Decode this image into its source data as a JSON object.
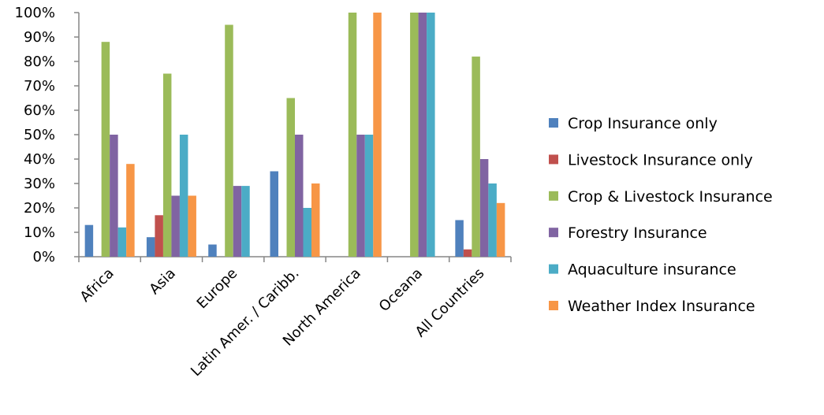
{
  "chart_data": {
    "type": "bar",
    "title": "",
    "xlabel": "",
    "ylabel": "",
    "ylim": [
      0,
      100
    ],
    "yticks": [
      "0%",
      "10%",
      "20%",
      "30%",
      "40%",
      "50%",
      "60%",
      "70%",
      "80%",
      "90%",
      "100%"
    ],
    "grid": false,
    "legend_position": "right",
    "categories": [
      "Africa",
      "Asia",
      "Europe",
      "Latin Amer. / Caribb.",
      "North America",
      "Oceana",
      "All Countries"
    ],
    "series": [
      {
        "name": "Crop Insurance only",
        "color": "#4F81BD",
        "values": [
          13,
          8,
          5,
          35,
          0,
          0,
          15
        ]
      },
      {
        "name": "Livestock Insurance only",
        "color": "#C0504D",
        "values": [
          0,
          17,
          0,
          0,
          0,
          0,
          3
        ]
      },
      {
        "name": "Crop & Livestock Insurance",
        "color": "#9BBB59",
        "values": [
          88,
          75,
          95,
          65,
          100,
          100,
          82
        ]
      },
      {
        "name": "Forestry Insurance",
        "color": "#8064A2",
        "values": [
          50,
          25,
          29,
          50,
          50,
          100,
          40
        ]
      },
      {
        "name": "Aquaculture insurance",
        "color": "#4BACC6",
        "values": [
          12,
          50,
          29,
          20,
          50,
          100,
          30
        ]
      },
      {
        "name": "Weather Index Insurance",
        "color": "#F79646",
        "values": [
          38,
          25,
          0,
          30,
          100,
          0,
          22
        ]
      }
    ]
  }
}
